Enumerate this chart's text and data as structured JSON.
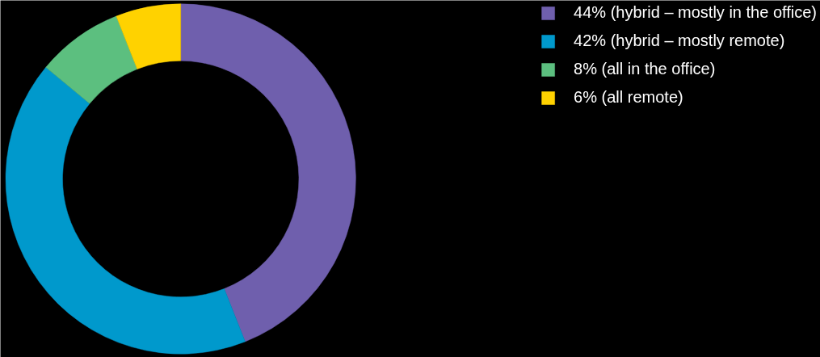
{
  "chart_data": {
    "type": "donut",
    "categories": [
      "44% (hybrid – mostly in the office)",
      "42% (hybrid – mostly remote)",
      "8% (all in the office)",
      "6% (all remote)"
    ],
    "values": [
      44,
      42,
      8,
      6
    ],
    "colors": [
      "#6f5fad",
      "#0099cc",
      "#5cbf7f",
      "#ffd200"
    ],
    "legend": "top right"
  }
}
